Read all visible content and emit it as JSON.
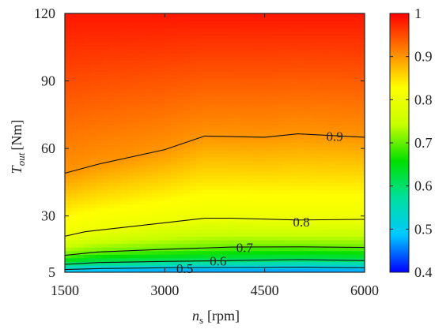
{
  "chart_data": {
    "type": "heatmap",
    "title": "",
    "xlabel": {
      "symbol": "n",
      "subscript": "s",
      "unit": "[rpm]"
    },
    "ylabel": {
      "symbol": "T",
      "subscript": "out",
      "unit": "[Nm]"
    },
    "xlim": [
      1500,
      6000
    ],
    "ylim": [
      5,
      120
    ],
    "xticks": [
      "1500",
      "3000",
      "4500",
      "6000"
    ],
    "yticks": [
      "5",
      "30",
      "60",
      "90",
      "120"
    ],
    "colorbar": {
      "range": [
        0.4,
        1
      ],
      "ticks": [
        "0.4",
        "0.5",
        "0.6",
        "0.7",
        "0.8",
        "0.9",
        "1"
      ],
      "colors": [
        "#0000ff",
        "#00c8ff",
        "#00e0a0",
        "#00e000",
        "#c8ff00",
        "#ffff00",
        "#ff8000",
        "#ff0000"
      ]
    },
    "contours": [
      {
        "level": 0.5,
        "label": "0.5",
        "label_at": [
          3300,
          6.8
        ],
        "x": [
          1500,
          2000,
          3000,
          4000,
          5000,
          6000
        ],
        "y": [
          6.2,
          6.6,
          7.0,
          7.1,
          7.2,
          7.0
        ]
      },
      {
        "level": 0.6,
        "label": "0.6",
        "label_at": [
          3800,
          10.0
        ],
        "x": [
          1500,
          2000,
          3000,
          4000,
          5000,
          6000
        ],
        "y": [
          8.5,
          9.3,
          9.8,
          10.2,
          10.6,
          10.2
        ]
      },
      {
        "level": 0.7,
        "label": "0.7",
        "label_at": [
          4200,
          16.0
        ],
        "x": [
          1500,
          2000,
          3000,
          4000,
          5000,
          6000
        ],
        "y": [
          12.5,
          14.0,
          15.2,
          16.2,
          16.3,
          16.0
        ]
      },
      {
        "level": 0.8,
        "label": "0.8",
        "label_at": [
          5050,
          27.5
        ],
        "x": [
          1500,
          1800,
          3000,
          3600,
          4000,
          5000,
          6000
        ],
        "y": [
          21.0,
          23.0,
          27.0,
          29.0,
          29.0,
          28.2,
          28.5
        ]
      },
      {
        "level": 0.9,
        "label": "0.9",
        "label_at": [
          5550,
          65.5
        ],
        "x": [
          1500,
          2000,
          3000,
          3600,
          4500,
          5000,
          6000
        ],
        "y": [
          49.0,
          53.0,
          59.5,
          65.5,
          65.0,
          66.5,
          65.0
        ]
      }
    ],
    "grid": false
  }
}
